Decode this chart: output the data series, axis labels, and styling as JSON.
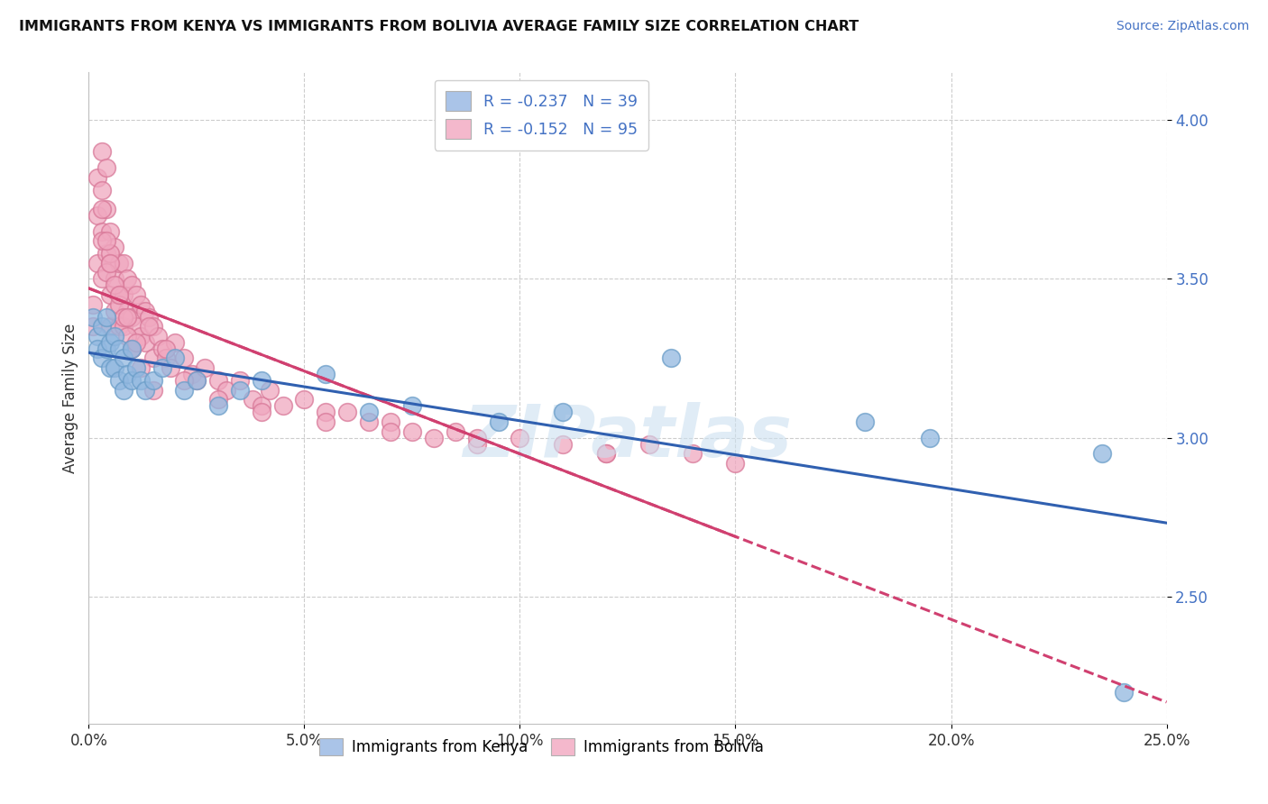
{
  "title": "IMMIGRANTS FROM KENYA VS IMMIGRANTS FROM BOLIVIA AVERAGE FAMILY SIZE CORRELATION CHART",
  "source": "Source: ZipAtlas.com",
  "ylabel": "Average Family Size",
  "xmin": 0.0,
  "xmax": 0.25,
  "ymin": 2.1,
  "ymax": 4.15,
  "yticks": [
    2.5,
    3.0,
    3.5,
    4.0
  ],
  "xticks": [
    0.0,
    0.05,
    0.1,
    0.15,
    0.2,
    0.25
  ],
  "xtick_labels": [
    "0.0%",
    "5.0%",
    "10.0%",
    "15.0%",
    "20.0%",
    "25.0%"
  ],
  "legend_label_kenya": "R = -0.237   N = 39",
  "legend_label_bolivia": "R = -0.152   N = 95",
  "legend_color_kenya": "#aac4e8",
  "legend_color_bolivia": "#f4b8cc",
  "kenya_dot_color": "#92b8e0",
  "kenya_edge_color": "#6a9dc8",
  "bolivia_dot_color": "#f0a8c0",
  "bolivia_edge_color": "#d87898",
  "trend_kenya_color": "#3060b0",
  "trend_bolivia_color": "#d04070",
  "watermark_color": "#cce0f0",
  "kenya_x": [
    0.001,
    0.002,
    0.002,
    0.003,
    0.003,
    0.004,
    0.004,
    0.005,
    0.005,
    0.006,
    0.006,
    0.007,
    0.007,
    0.008,
    0.008,
    0.009,
    0.01,
    0.01,
    0.011,
    0.012,
    0.013,
    0.015,
    0.017,
    0.02,
    0.022,
    0.025,
    0.03,
    0.035,
    0.04,
    0.055,
    0.065,
    0.075,
    0.095,
    0.11,
    0.135,
    0.18,
    0.195,
    0.235,
    0.24
  ],
  "kenya_y": [
    3.38,
    3.32,
    3.28,
    3.35,
    3.25,
    3.38,
    3.28,
    3.3,
    3.22,
    3.32,
    3.22,
    3.28,
    3.18,
    3.25,
    3.15,
    3.2,
    3.28,
    3.18,
    3.22,
    3.18,
    3.15,
    3.18,
    3.22,
    3.25,
    3.15,
    3.18,
    3.1,
    3.15,
    3.18,
    3.2,
    3.08,
    3.1,
    3.05,
    3.08,
    3.25,
    3.05,
    3.0,
    2.95,
    2.2
  ],
  "bolivia_x": [
    0.001,
    0.001,
    0.002,
    0.002,
    0.002,
    0.003,
    0.003,
    0.003,
    0.003,
    0.004,
    0.004,
    0.004,
    0.005,
    0.005,
    0.005,
    0.005,
    0.006,
    0.006,
    0.006,
    0.007,
    0.007,
    0.007,
    0.008,
    0.008,
    0.008,
    0.009,
    0.009,
    0.01,
    0.01,
    0.01,
    0.011,
    0.011,
    0.012,
    0.012,
    0.013,
    0.013,
    0.014,
    0.015,
    0.015,
    0.016,
    0.017,
    0.018,
    0.019,
    0.02,
    0.022,
    0.024,
    0.025,
    0.027,
    0.03,
    0.032,
    0.035,
    0.038,
    0.04,
    0.042,
    0.045,
    0.05,
    0.055,
    0.06,
    0.065,
    0.07,
    0.075,
    0.08,
    0.085,
    0.09,
    0.1,
    0.11,
    0.12,
    0.13,
    0.14,
    0.15,
    0.003,
    0.004,
    0.005,
    0.006,
    0.007,
    0.008,
    0.009,
    0.01,
    0.012,
    0.015,
    0.003,
    0.004,
    0.005,
    0.007,
    0.009,
    0.011,
    0.014,
    0.018,
    0.022,
    0.03,
    0.04,
    0.055,
    0.07,
    0.09,
    0.12
  ],
  "bolivia_y": [
    3.42,
    3.35,
    3.82,
    3.7,
    3.55,
    3.9,
    3.78,
    3.65,
    3.5,
    3.85,
    3.72,
    3.58,
    3.65,
    3.55,
    3.45,
    3.35,
    3.6,
    3.5,
    3.4,
    3.55,
    3.45,
    3.35,
    3.55,
    3.45,
    3.35,
    3.5,
    3.4,
    3.48,
    3.38,
    3.28,
    3.45,
    3.35,
    3.42,
    3.32,
    3.4,
    3.3,
    3.38,
    3.35,
    3.25,
    3.32,
    3.28,
    3.25,
    3.22,
    3.3,
    3.25,
    3.2,
    3.18,
    3.22,
    3.18,
    3.15,
    3.18,
    3.12,
    3.1,
    3.15,
    3.1,
    3.12,
    3.08,
    3.08,
    3.05,
    3.05,
    3.02,
    3.0,
    3.02,
    2.98,
    3.0,
    2.98,
    2.95,
    2.98,
    2.95,
    2.92,
    3.62,
    3.52,
    3.58,
    3.48,
    3.42,
    3.38,
    3.32,
    3.28,
    3.22,
    3.15,
    3.72,
    3.62,
    3.55,
    3.45,
    3.38,
    3.3,
    3.35,
    3.28,
    3.18,
    3.12,
    3.08,
    3.05,
    3.02,
    3.0,
    2.95
  ]
}
